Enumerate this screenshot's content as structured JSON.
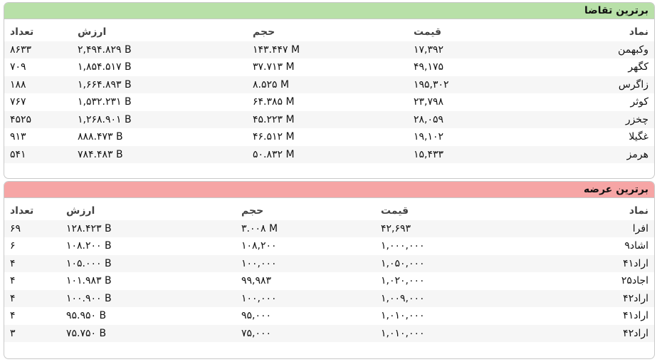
{
  "demand": {
    "title": "برترین تقاضا",
    "columns": {
      "symbol": "نماد",
      "price": "قیمت",
      "volume": "حجم",
      "value": "ارزش",
      "count": "تعداد"
    },
    "rows": [
      {
        "symbol": "وکبهمن",
        "price": "۱۷,۳۹۲",
        "volume": "۱۴۳.۴۴۷ M",
        "value": "۲,۴۹۴.۸۲۹ B",
        "count": "۸۶۳۳"
      },
      {
        "symbol": "کگهر",
        "price": "۴۹,۱۷۵",
        "volume": "۳۷.۷۱۳ M",
        "value": "۱,۸۵۴.۵۱۷ B",
        "count": "۷۰۹"
      },
      {
        "symbol": "زاگرس",
        "price": "۱۹۵,۳۰۲",
        "volume": "۸.۵۲۵ M",
        "value": "۱,۶۶۴.۸۹۳ B",
        "count": "۱۸۸"
      },
      {
        "symbol": "کوثر",
        "price": "۲۳,۷۹۸",
        "volume": "۶۴.۳۸۵ M",
        "value": "۱,۵۳۲.۲۳۱ B",
        "count": "۷۶۷"
      },
      {
        "symbol": "چخزر",
        "price": "۲۸,۰۵۹",
        "volume": "۴۵.۲۲۳ M",
        "value": "۱,۲۶۸.۹۰۱ B",
        "count": "۴۵۲۵"
      },
      {
        "symbol": "غگیلا",
        "price": "۱۹,۱۰۲",
        "volume": "۴۶.۵۱۲ M",
        "value": "۸۸۸.۴۷۳ B",
        "count": "۹۱۳"
      },
      {
        "symbol": "هرمز",
        "price": "۱۵,۴۳۳",
        "volume": "۵۰.۸۳۲ M",
        "value": "۷۸۴.۴۸۳ B",
        "count": "۵۴۱"
      }
    ]
  },
  "supply": {
    "title": "برترین عرضه",
    "columns": {
      "symbol": "نماد",
      "price": "قیمت",
      "volume": "حجم",
      "value": "ارزش",
      "count": "تعداد"
    },
    "rows": [
      {
        "symbol": "افرا",
        "price": "۴۲,۶۹۳",
        "volume": "۳.۰۰۸ M",
        "value": "۱۲۸.۴۲۳ B",
        "count": "۶۹"
      },
      {
        "symbol": "اشاد۹",
        "price": "۱,۰۰۰,۰۰۰",
        "volume": "۱۰۸,۲۰۰",
        "value": "۱۰۸.۲۰۰ B",
        "count": "۶"
      },
      {
        "symbol": "اراد۴۱",
        "price": "۱,۰۵۰,۰۰۰",
        "volume": "۱۰۰,۰۰۰",
        "value": "۱۰۵.۰۰۰ B",
        "count": "۴"
      },
      {
        "symbol": "اجاد۲۵",
        "price": "۱,۰۲۰,۰۰۰",
        "volume": "۹۹,۹۸۳",
        "value": "۱۰۱.۹۸۳ B",
        "count": "۴"
      },
      {
        "symbol": "اراد۴۲",
        "price": "۱,۰۰۹,۰۰۰",
        "volume": "۱۰۰,۰۰۰",
        "value": "۱۰۰.۹۰۰ B",
        "count": "۴"
      },
      {
        "symbol": "اراد۴۱",
        "price": "۱,۰۱۰,۰۰۰",
        "volume": "۹۵,۰۰۰",
        "value": "۹۵.۹۵۰ B",
        "count": "۴"
      },
      {
        "symbol": "اراد۴۲",
        "price": "۱,۰۱۰,۰۰۰",
        "volume": "۷۵,۰۰۰",
        "value": "۷۵.۷۵۰ B",
        "count": "۳"
      }
    ]
  }
}
